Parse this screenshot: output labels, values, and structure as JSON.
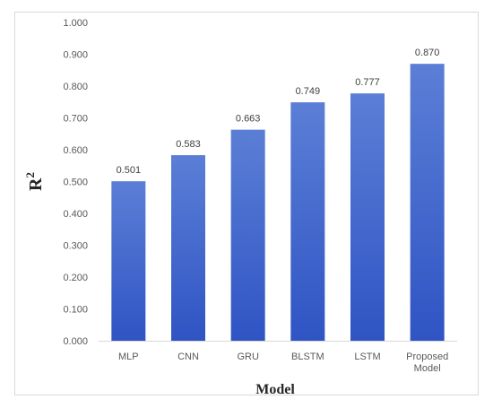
{
  "chart_data": {
    "type": "bar",
    "categories": [
      "MLP",
      "CNN",
      "GRU",
      "BLSTM",
      "LSTM",
      "Proposed Model"
    ],
    "values": [
      0.501,
      0.583,
      0.663,
      0.749,
      0.777,
      0.87
    ],
    "data_labels": [
      "0.501",
      "0.583",
      "0.663",
      "0.749",
      "0.777",
      "0.870"
    ],
    "title": "",
    "xlabel": "Model",
    "ylabel_base": "R",
    "ylabel_superscript": "2",
    "ylim": [
      0,
      1
    ],
    "yticks": [
      "0.000",
      "0.100",
      "0.200",
      "0.300",
      "0.400",
      "0.500",
      "0.600",
      "0.700",
      "0.800",
      "0.900",
      "1.000"
    ],
    "grid": false,
    "legend": "none",
    "bar_color_top": "#5b7fd6",
    "bar_color_bottom": "#2f54c4"
  }
}
